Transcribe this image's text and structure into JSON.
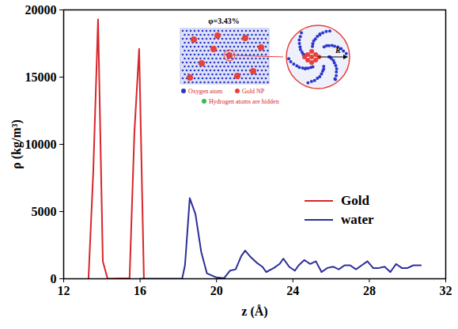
{
  "chart_data": {
    "type": "line",
    "xlabel": "z (Å)",
    "ylabel": "ρ (kg/m³)",
    "xlim": [
      12,
      32
    ],
    "xticks": [
      12,
      16,
      20,
      24,
      28,
      32
    ],
    "ylim": [
      0,
      20000
    ],
    "yticks": [
      0,
      5000,
      10000,
      15000,
      20000
    ],
    "legend": "right",
    "series": [
      {
        "name": "Gold",
        "color": "#d7262b",
        "x": [
          13.3,
          13.55,
          13.8,
          14.05,
          14.3,
          15.45,
          15.7,
          15.95,
          16.2
        ],
        "values": [
          0,
          8000,
          19300,
          1300,
          0,
          50,
          10800,
          17100,
          0
        ]
      },
      {
        "name": "water",
        "color": "#2b2f98",
        "x": [
          16.0,
          18.2,
          18.35,
          18.6,
          18.9,
          19.2,
          19.5,
          20.0,
          20.4,
          20.7,
          21.0,
          21.3,
          21.5,
          21.8,
          22.1,
          22.4,
          22.6,
          23.0,
          23.3,
          23.5,
          23.8,
          24.1,
          24.3,
          24.6,
          24.9,
          25.2,
          25.5,
          25.8,
          26.1,
          26.4,
          26.7,
          27.0,
          27.3,
          27.6,
          27.9,
          28.2,
          28.5,
          28.8,
          29.1,
          29.4,
          29.7,
          30.0,
          30.3,
          30.7
        ],
        "values": [
          0,
          0,
          1000,
          6000,
          4800,
          2000,
          400,
          100,
          50,
          600,
          700,
          1700,
          2100,
          1600,
          1200,
          900,
          500,
          800,
          1100,
          1500,
          900,
          600,
          1000,
          1400,
          1100,
          1300,
          500,
          800,
          900,
          700,
          1000,
          1000,
          700,
          1000,
          1300,
          800,
          800,
          900,
          500,
          1100,
          800,
          800,
          1000,
          1000
        ]
      }
    ],
    "inset": {
      "title": "φ=3.43%",
      "items": [
        {
          "label": "Oxygen atom",
          "color": "#2b36c8"
        },
        {
          "label": "Gold NP",
          "color": "#e8413a"
        },
        {
          "label": "Hydrogen atoms are hidden",
          "color": "#2fbf4a"
        }
      ],
      "radius_label": "R"
    }
  }
}
